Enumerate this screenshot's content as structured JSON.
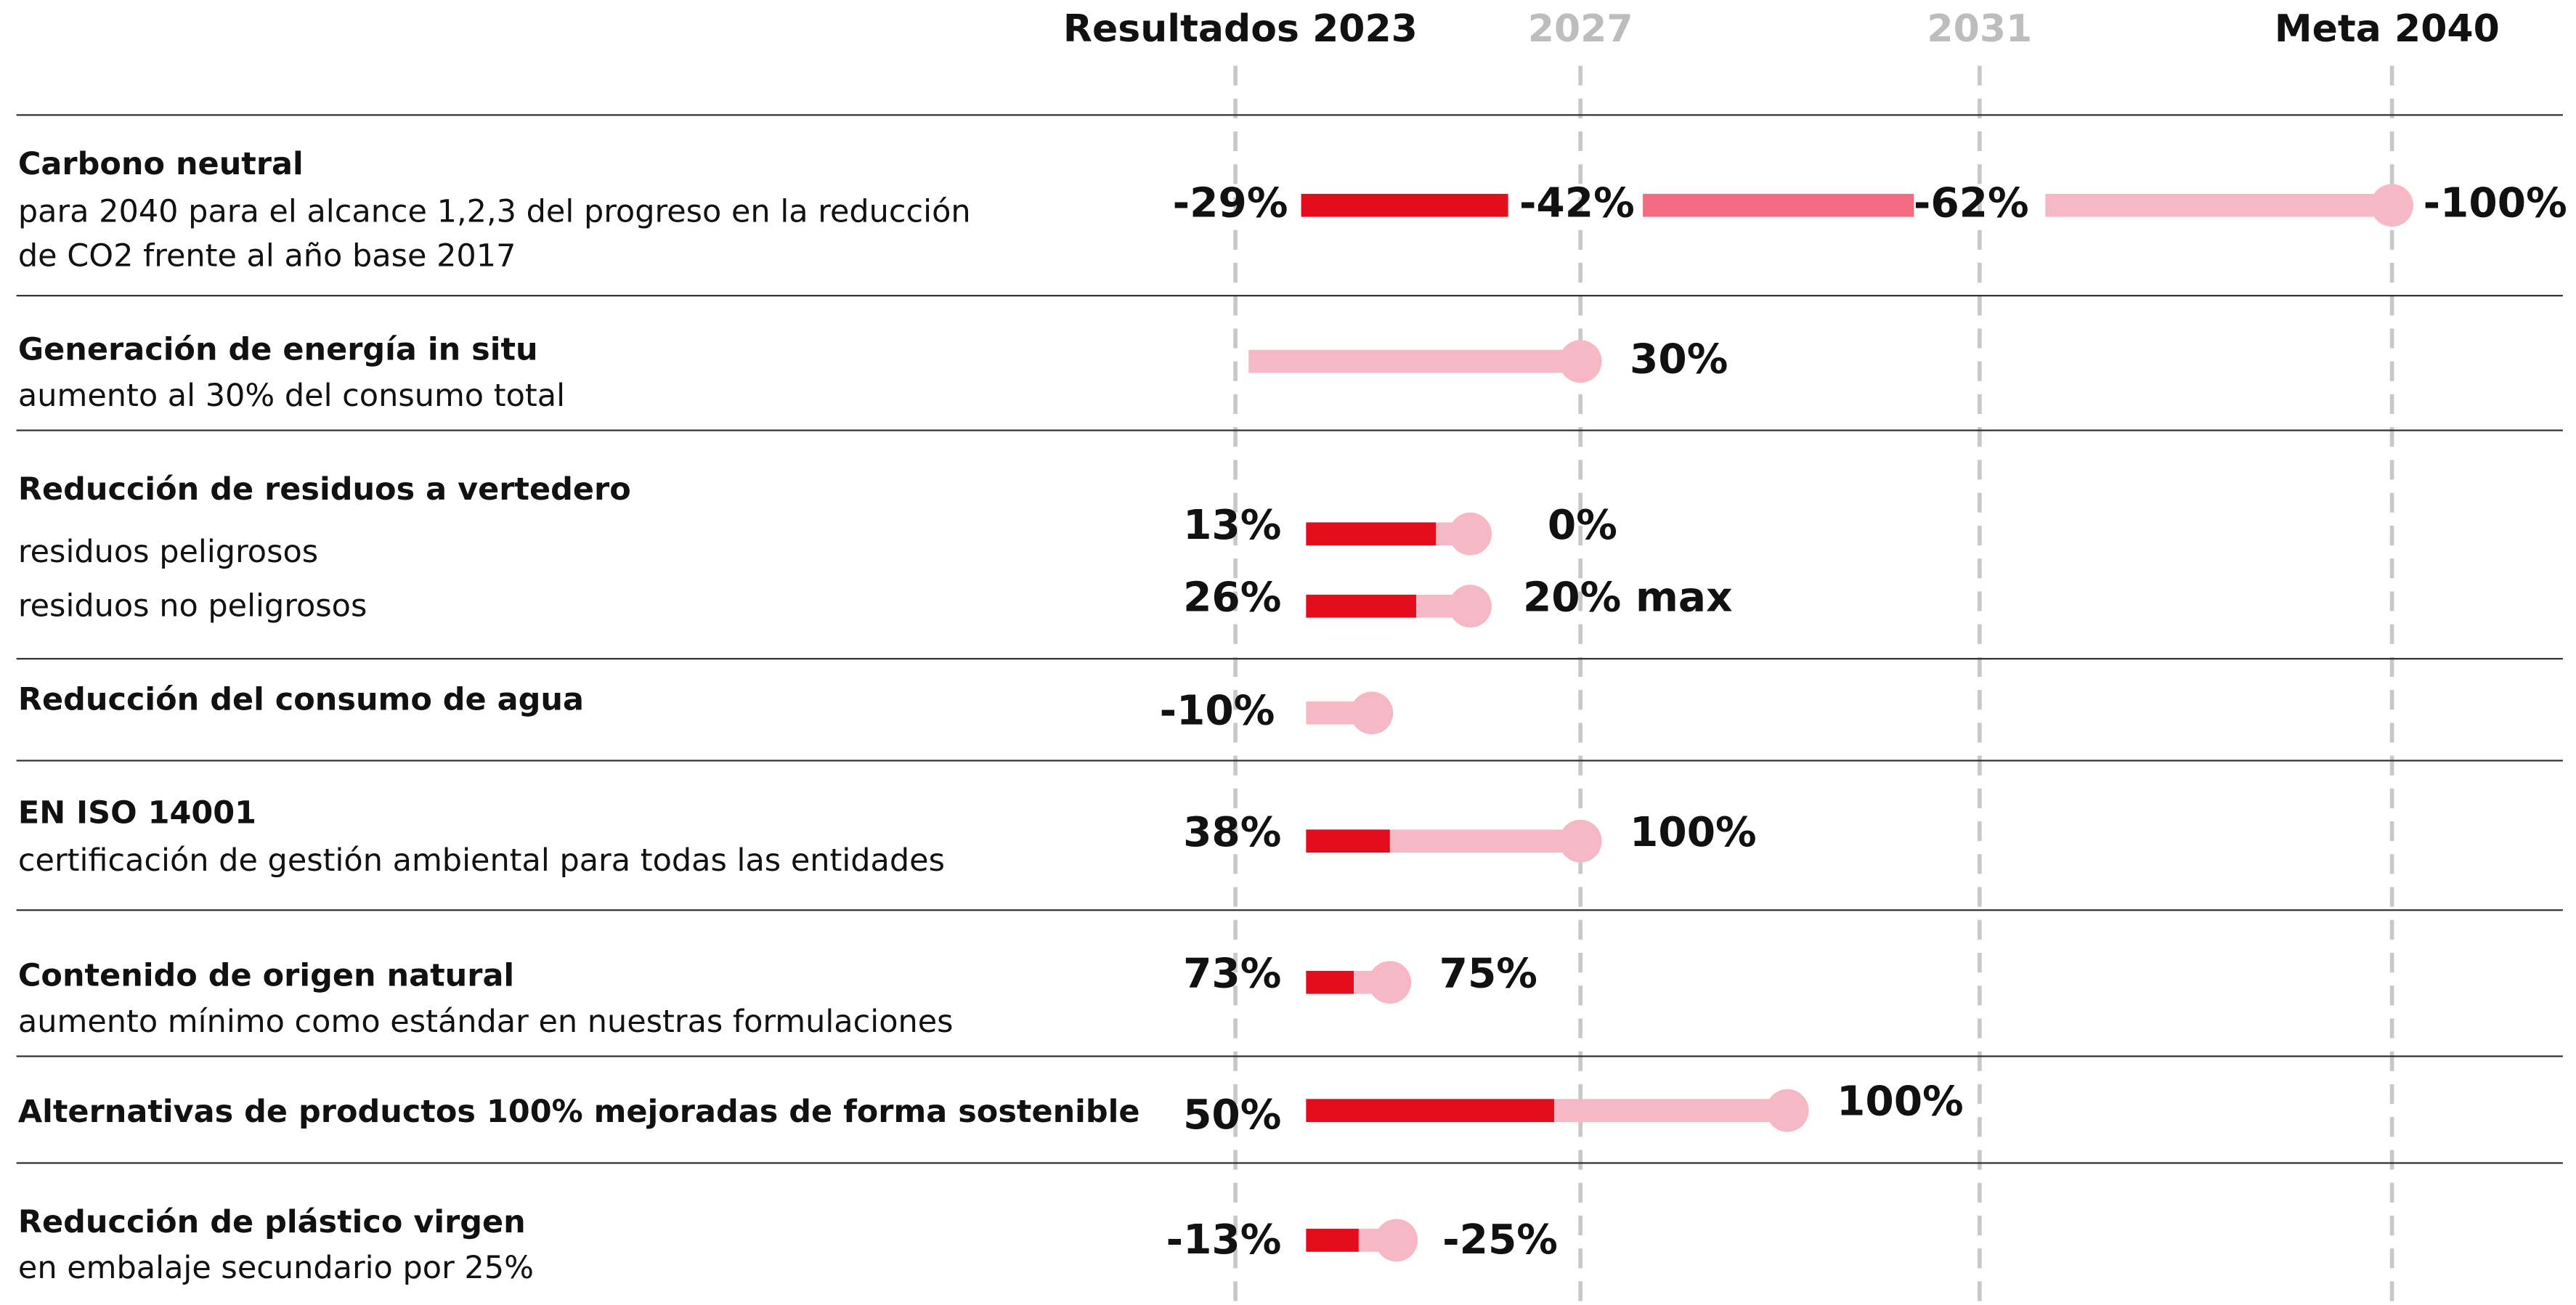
{
  "header": {
    "columns": [
      "Resultados 2023",
      "2027",
      "2031",
      "Meta 2040"
    ]
  },
  "rows": [
    {
      "title": "Carbono neutral",
      "subtitle": [
        "para 2040 para el alcance 1,2,3 del progreso en la reducción",
        "de CO2 frente al año base 2017"
      ],
      "values": [
        "-29%",
        "-42%",
        "-62%",
        "-100%"
      ]
    },
    {
      "title": "Generación de energía in situ",
      "subtitle": [
        "aumento al 30% del consumo total"
      ],
      "values": [
        "30%"
      ]
    },
    {
      "title": "Reducción de residuos a vertedero",
      "items": [
        {
          "label": "residuos peligrosos",
          "values": [
            "13%",
            "0%"
          ]
        },
        {
          "label": "residuos no peligrosos",
          "values": [
            "26%",
            "20% max"
          ]
        }
      ]
    },
    {
      "title": "Reducción del consumo de agua",
      "values": [
        "-10%"
      ]
    },
    {
      "title": "EN ISO 14001",
      "subtitle": [
        "certificación de gestión ambiental para todas las entidades"
      ],
      "values": [
        "38%",
        "100%"
      ]
    },
    {
      "title": "Contenido de origen natural",
      "subtitle": [
        "aumento mínimo como estándar en nuestras formulaciones"
      ],
      "values": [
        "73%",
        "75%"
      ]
    },
    {
      "title": "Alternativas de productos 100% mejoradas de forma sostenible",
      "values": [
        "50%",
        "100%"
      ]
    },
    {
      "title": "Reducción de plástico virgen",
      "subtitle": [
        "en embalaje secundario por 25%"
      ],
      "values": [
        "-13%",
        "-25%"
      ]
    }
  ]
}
